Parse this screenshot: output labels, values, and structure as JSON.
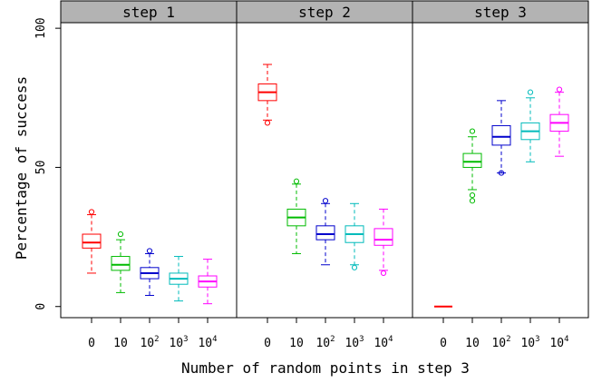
{
  "chart_data": {
    "type": "box",
    "xlabel": "Number of random points in step 3",
    "ylabel": "Percentage of success",
    "ylim": [
      -4,
      102
    ],
    "yticks": [
      0,
      50,
      100
    ],
    "ytick_labels": [
      "0",
      "50",
      "100"
    ],
    "categories": [
      {
        "base": "0",
        "exp": ""
      },
      {
        "base": "10",
        "exp": ""
      },
      {
        "base": "10",
        "exp": "2"
      },
      {
        "base": "10",
        "exp": "3"
      },
      {
        "base": "10",
        "exp": "4"
      }
    ],
    "category_colors": [
      "#ff0000",
      "#00bb00",
      "#0000cc",
      "#00bbbb",
      "#ff00ff"
    ],
    "panel_header_color": "#b3b3b3",
    "panels": [
      {
        "title": "step 1",
        "boxes": [
          {
            "category": "0",
            "whisker_low": 12,
            "q1": 21,
            "median": 23,
            "q3": 26,
            "whisker_high": 33,
            "outliers": [
              34
            ]
          },
          {
            "category": "10",
            "whisker_low": 5,
            "q1": 13,
            "median": 15,
            "q3": 18,
            "whisker_high": 24,
            "outliers": [
              26
            ]
          },
          {
            "category": "10^2",
            "whisker_low": 4,
            "q1": 10,
            "median": 12,
            "q3": 14,
            "whisker_high": 19,
            "outliers": [
              20
            ]
          },
          {
            "category": "10^3",
            "whisker_low": 2,
            "q1": 8,
            "median": 10,
            "q3": 12,
            "whisker_high": 18,
            "outliers": []
          },
          {
            "category": "10^4",
            "whisker_low": 1,
            "q1": 7,
            "median": 9,
            "q3": 11,
            "whisker_high": 17,
            "outliers": []
          }
        ]
      },
      {
        "title": "step 2",
        "boxes": [
          {
            "category": "0",
            "whisker_low": 67,
            "q1": 74,
            "median": 77,
            "q3": 80,
            "whisker_high": 87,
            "outliers": [
              66
            ]
          },
          {
            "category": "10",
            "whisker_low": 19,
            "q1": 29,
            "median": 32,
            "q3": 35,
            "whisker_high": 44,
            "outliers": [
              45
            ]
          },
          {
            "category": "10^2",
            "whisker_low": 15,
            "q1": 24,
            "median": 26,
            "q3": 29,
            "whisker_high": 37,
            "outliers": [
              38
            ]
          },
          {
            "category": "10^3",
            "whisker_low": 15,
            "q1": 23,
            "median": 26,
            "q3": 29,
            "whisker_high": 37,
            "outliers": [
              14
            ]
          },
          {
            "category": "10^4",
            "whisker_low": 13,
            "q1": 22,
            "median": 24,
            "q3": 28,
            "whisker_high": 35,
            "outliers": [
              12
            ]
          }
        ]
      },
      {
        "title": "step 3",
        "boxes": [
          {
            "category": "0",
            "whisker_low": 0,
            "q1": 0,
            "median": 0,
            "q3": 0,
            "whisker_high": 0,
            "outliers": []
          },
          {
            "category": "10",
            "whisker_low": 42,
            "q1": 50,
            "median": 52,
            "q3": 55,
            "whisker_high": 61,
            "outliers": [
              38,
              40,
              63
            ]
          },
          {
            "category": "10^2",
            "whisker_low": 48,
            "q1": 58,
            "median": 61,
            "q3": 65,
            "whisker_high": 74,
            "outliers": [
              48
            ]
          },
          {
            "category": "10^3",
            "whisker_low": 52,
            "q1": 60,
            "median": 63,
            "q3": 66,
            "whisker_high": 75,
            "outliers": [
              77
            ]
          },
          {
            "category": "10^4",
            "whisker_low": 54,
            "q1": 63,
            "median": 66,
            "q3": 69,
            "whisker_high": 77,
            "outliers": [
              78
            ]
          }
        ]
      }
    ]
  }
}
